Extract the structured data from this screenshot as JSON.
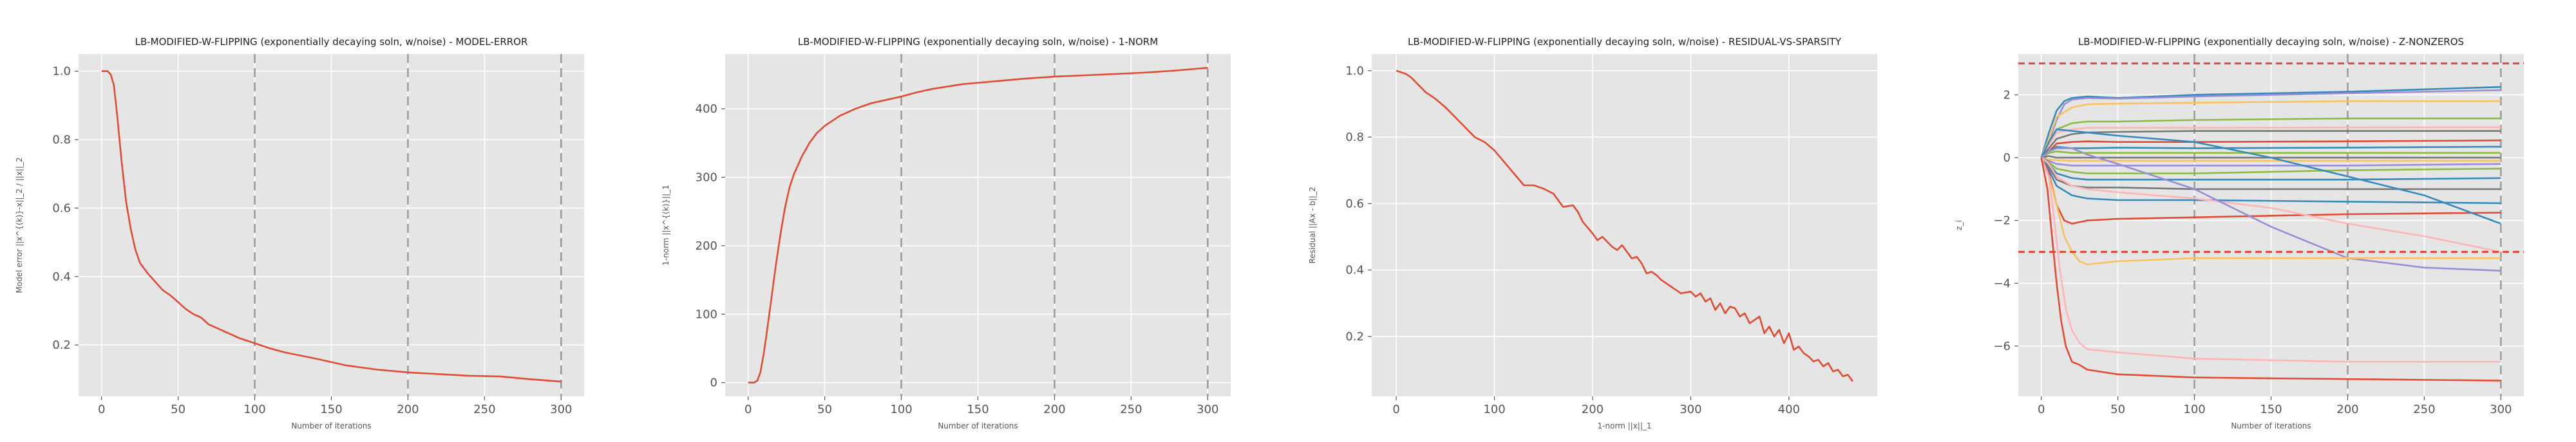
{
  "chart_data": [
    {
      "type": "line",
      "title": "LB-MODIFIED-W-FLIPPING (exponentially decaying soln, w/noise) - MODEL-ERROR",
      "xlabel": "Number of iterations",
      "ylabel": "Model error ||x^{(k)}-x||_2 / ||x||_2",
      "xlim": [
        -15,
        315
      ],
      "ylim": [
        0.05,
        1.05
      ],
      "xticks": [
        0,
        50,
        100,
        150,
        200,
        250,
        300
      ],
      "yticks": [
        0.2,
        0.4,
        0.6,
        0.8,
        1.0
      ],
      "ytick_labels": [
        "0.2",
        "0.4",
        "0.6",
        "0.8",
        "1.0"
      ],
      "vlines": [
        100,
        200,
        300
      ],
      "hlines": [],
      "grid": true,
      "series": [
        {
          "color": "#e24a33",
          "x": [
            0,
            2,
            4,
            6,
            8,
            10,
            13,
            16,
            19,
            22,
            25,
            30,
            35,
            40,
            45,
            50,
            55,
            60,
            65,
            70,
            80,
            90,
            100,
            110,
            120,
            140,
            160,
            180,
            200,
            220,
            240,
            260,
            280,
            300
          ],
          "y": [
            1.0,
            1.0,
            1.0,
            0.99,
            0.96,
            0.88,
            0.74,
            0.62,
            0.54,
            0.48,
            0.44,
            0.41,
            0.385,
            0.36,
            0.345,
            0.325,
            0.305,
            0.29,
            0.28,
            0.26,
            0.24,
            0.22,
            0.205,
            0.19,
            0.178,
            0.16,
            0.14,
            0.128,
            0.12,
            0.115,
            0.11,
            0.108,
            0.1,
            0.093
          ]
        }
      ]
    },
    {
      "type": "line",
      "title": "LB-MODIFIED-W-FLIPPING (exponentially decaying soln, w/noise) - 1-NORM",
      "xlabel": "Number of iterations",
      "ylabel": "1-norm ||x^{(k)}||_1",
      "xlim": [
        -15,
        315
      ],
      "ylim": [
        -20,
        480
      ],
      "xticks": [
        0,
        50,
        100,
        150,
        200,
        250,
        300
      ],
      "yticks": [
        0,
        100,
        200,
        300,
        400
      ],
      "ytick_labels": [
        "0",
        "100",
        "200",
        "300",
        "400"
      ],
      "vlines": [
        100,
        200,
        300
      ],
      "hlines": [],
      "grid": true,
      "series": [
        {
          "color": "#e24a33",
          "x": [
            0,
            2,
            4,
            6,
            8,
            10,
            12,
            15,
            18,
            21,
            24,
            27,
            30,
            35,
            40,
            45,
            50,
            60,
            70,
            80,
            90,
            100,
            110,
            120,
            140,
            160,
            180,
            200,
            220,
            240,
            260,
            280,
            300
          ],
          "y": [
            0,
            0,
            0,
            3,
            15,
            40,
            70,
            120,
            170,
            215,
            255,
            285,
            305,
            330,
            350,
            365,
            375,
            390,
            400,
            408,
            413,
            418,
            424,
            429,
            436,
            440,
            444,
            447,
            449,
            451,
            453,
            456,
            460
          ]
        }
      ]
    },
    {
      "type": "line",
      "title": "LB-MODIFIED-W-FLIPPING (exponentially decaying soln, w/noise) - RESIDUAL-VS-SPARSITY",
      "xlabel": "1-norm ||x||_1",
      "ylabel": "Residual ||Ax - b||_2",
      "xlim": [
        -25,
        490
      ],
      "ylim": [
        0.02,
        1.05
      ],
      "xticks": [
        0,
        100,
        200,
        300,
        400
      ],
      "yticks": [
        0.2,
        0.4,
        0.6,
        0.8,
        1.0
      ],
      "ytick_labels": [
        "0.2",
        "0.4",
        "0.6",
        "0.8",
        "1.0"
      ],
      "vlines": [],
      "hlines": [],
      "grid": true,
      "series": [
        {
          "color": "#e24a33",
          "x": [
            0,
            5,
            10,
            15,
            20,
            25,
            30,
            35,
            40,
            50,
            60,
            70,
            80,
            90,
            100,
            110,
            120,
            130,
            140,
            150,
            160,
            170,
            180,
            185,
            190,
            200,
            205,
            210,
            220,
            225,
            230,
            240,
            245,
            250,
            255,
            260,
            265,
            270,
            280,
            290,
            300,
            305,
            310,
            315,
            320,
            325,
            330,
            335,
            340,
            345,
            350,
            355,
            360,
            365,
            370,
            375,
            380,
            385,
            390,
            395,
            400,
            405,
            410,
            415,
            420,
            425,
            430,
            435,
            440,
            445,
            450,
            455,
            460,
            465
          ],
          "y": [
            1.0,
            0.995,
            0.99,
            0.98,
            0.965,
            0.95,
            0.935,
            0.925,
            0.915,
            0.89,
            0.86,
            0.83,
            0.8,
            0.785,
            0.76,
            0.725,
            0.69,
            0.655,
            0.655,
            0.645,
            0.63,
            0.59,
            0.595,
            0.575,
            0.545,
            0.51,
            0.49,
            0.5,
            0.47,
            0.46,
            0.475,
            0.435,
            0.44,
            0.42,
            0.39,
            0.395,
            0.385,
            0.37,
            0.35,
            0.33,
            0.335,
            0.32,
            0.33,
            0.305,
            0.315,
            0.28,
            0.3,
            0.27,
            0.29,
            0.285,
            0.26,
            0.27,
            0.24,
            0.25,
            0.26,
            0.21,
            0.23,
            0.2,
            0.22,
            0.18,
            0.21,
            0.16,
            0.17,
            0.15,
            0.14,
            0.125,
            0.13,
            0.11,
            0.12,
            0.095,
            0.1,
            0.08,
            0.085,
            0.065
          ]
        }
      ]
    },
    {
      "type": "line",
      "title": "LB-MODIFIED-W-FLIPPING (exponentially decaying soln, w/noise) - Z-NONZEROS",
      "xlabel": "Number of iterations",
      "ylabel": "z_i",
      "xlim": [
        -15,
        315
      ],
      "ylim": [
        -7.6,
        3.3
      ],
      "xticks": [
        0,
        50,
        100,
        150,
        200,
        250,
        300
      ],
      "yticks": [
        -6,
        -4,
        -2,
        0,
        2
      ],
      "ytick_labels": [
        "−6",
        "−4",
        "−2",
        "0",
        "2"
      ],
      "vlines": [
        100,
        200,
        300
      ],
      "hlines": [
        3,
        -3
      ],
      "grid": true,
      "series": [
        {
          "color": "#348abd",
          "x": [
            0,
            5,
            10,
            15,
            20,
            30,
            50,
            100,
            200,
            300
          ],
          "y": [
            0,
            0.8,
            1.5,
            1.8,
            1.9,
            1.95,
            1.9,
            2.0,
            2.1,
            2.25
          ]
        },
        {
          "color": "#988ed5",
          "x": [
            0,
            5,
            10,
            15,
            20,
            30,
            50,
            100,
            200,
            300
          ],
          "y": [
            0,
            0.5,
            1.2,
            1.7,
            1.85,
            1.9,
            1.88,
            1.95,
            2.05,
            2.15
          ]
        },
        {
          "color": "#fbc15e",
          "x": [
            0,
            5,
            10,
            20,
            30,
            50,
            100,
            200,
            300
          ],
          "y": [
            0,
            0.6,
            1.3,
            1.6,
            1.7,
            1.72,
            1.75,
            1.8,
            1.8
          ]
        },
        {
          "color": "#8eba42",
          "x": [
            0,
            5,
            10,
            20,
            30,
            50,
            100,
            200,
            300
          ],
          "y": [
            0,
            0.4,
            0.9,
            1.1,
            1.15,
            1.15,
            1.2,
            1.25,
            1.25
          ]
        },
        {
          "color": "#ffb5b8",
          "x": [
            0,
            5,
            10,
            20,
            30,
            50,
            100,
            200,
            300
          ],
          "y": [
            0,
            0.4,
            0.8,
            0.9,
            0.95,
            0.95,
            0.95,
            0.96,
            0.97
          ]
        },
        {
          "color": "#777777",
          "x": [
            0,
            5,
            10,
            20,
            30,
            50,
            100,
            200,
            300
          ],
          "y": [
            0,
            0.3,
            0.6,
            0.75,
            0.8,
            0.82,
            0.85,
            0.85,
            0.85
          ]
        },
        {
          "color": "#e24a33",
          "x": [
            0,
            5,
            10,
            20,
            30,
            50,
            100,
            200,
            300
          ],
          "y": [
            0,
            0.2,
            0.45,
            0.5,
            0.52,
            0.5,
            0.5,
            0.52,
            0.55
          ]
        },
        {
          "color": "#348abd",
          "x": [
            0,
            5,
            10,
            20,
            30,
            50,
            100,
            200,
            300
          ],
          "y": [
            0,
            0.2,
            0.35,
            0.3,
            0.3,
            0.32,
            0.3,
            0.32,
            0.35
          ]
        },
        {
          "color": "#8eba42",
          "x": [
            0,
            5,
            10,
            20,
            30,
            50,
            100,
            200,
            300
          ],
          "y": [
            0,
            0.15,
            0.2,
            0.15,
            0.15,
            0.15,
            0.15,
            0.15,
            0.15
          ]
        },
        {
          "color": "#777777",
          "x": [
            0,
            5,
            10,
            20,
            30,
            50,
            100,
            200,
            300
          ],
          "y": [
            0,
            0.05,
            0.0,
            0.0,
            0.0,
            0.0,
            0.0,
            0.0,
            0.0
          ]
        },
        {
          "color": "#fbc15e",
          "x": [
            0,
            5,
            10,
            20,
            30,
            50,
            100,
            200,
            300
          ],
          "y": [
            0,
            -0.05,
            -0.08,
            -0.1,
            -0.1,
            -0.1,
            -0.1,
            -0.1,
            -0.1
          ]
        },
        {
          "color": "#988ed5",
          "x": [
            0,
            5,
            10,
            20,
            30,
            50,
            100,
            200,
            300
          ],
          "y": [
            0,
            -0.1,
            -0.2,
            -0.25,
            -0.25,
            -0.25,
            -0.25,
            -0.25,
            -0.2
          ]
        },
        {
          "color": "#8eba42",
          "x": [
            0,
            5,
            10,
            20,
            30,
            50,
            100,
            200,
            300
          ],
          "y": [
            0,
            -0.15,
            -0.35,
            -0.45,
            -0.5,
            -0.5,
            -0.5,
            -0.4,
            -0.35
          ]
        },
        {
          "color": "#348abd",
          "x": [
            0,
            5,
            10,
            20,
            30,
            50,
            100,
            200,
            300
          ],
          "y": [
            0,
            -0.2,
            -0.5,
            -0.65,
            -0.7,
            -0.7,
            -0.7,
            -0.7,
            -0.65
          ]
        },
        {
          "color": "#777777",
          "x": [
            0,
            5,
            10,
            20,
            30,
            50,
            100,
            200,
            300
          ],
          "y": [
            0,
            -0.3,
            -0.7,
            -0.9,
            -0.95,
            -0.95,
            -1.0,
            -1.0,
            -1.0
          ]
        },
        {
          "color": "#348abd",
          "x": [
            0,
            5,
            10,
            20,
            30,
            50,
            100,
            200,
            300
          ],
          "y": [
            0,
            -0.4,
            -0.9,
            -1.2,
            -1.3,
            -1.35,
            -1.35,
            -1.4,
            -1.45
          ]
        },
        {
          "color": "#e24a33",
          "x": [
            0,
            5,
            10,
            15,
            20,
            30,
            50,
            100,
            200,
            300
          ],
          "y": [
            0,
            -0.5,
            -1.5,
            -2.0,
            -2.1,
            -2.0,
            -1.95,
            -1.9,
            -1.8,
            -1.75
          ]
        },
        {
          "color": "#348abd",
          "x": [
            0,
            5,
            10,
            20,
            30,
            50,
            100,
            150,
            200,
            250,
            300
          ],
          "y": [
            0,
            0.5,
            0.9,
            0.85,
            0.8,
            0.7,
            0.5,
            0.0,
            -0.6,
            -1.2,
            -2.1
          ]
        },
        {
          "color": "#ffb5b8",
          "x": [
            0,
            5,
            10,
            20,
            30,
            50,
            100,
            150,
            200,
            250,
            300
          ],
          "y": [
            0,
            -0.2,
            -0.6,
            -0.9,
            -1.0,
            -1.1,
            -1.3,
            -1.6,
            -2.1,
            -2.5,
            -3.0
          ]
        },
        {
          "color": "#988ed5",
          "x": [
            0,
            5,
            10,
            20,
            30,
            50,
            100,
            150,
            200,
            250,
            300
          ],
          "y": [
            0,
            0.2,
            0.3,
            0.3,
            0.1,
            -0.2,
            -1.0,
            -2.2,
            -3.2,
            -3.5,
            -3.6
          ]
        },
        {
          "color": "#fbc15e",
          "x": [
            0,
            5,
            10,
            15,
            20,
            25,
            30,
            50,
            100,
            200,
            300
          ],
          "y": [
            0,
            -0.6,
            -1.5,
            -2.5,
            -3.0,
            -3.3,
            -3.4,
            -3.3,
            -3.2,
            -3.2,
            -3.2
          ]
        },
        {
          "color": "#ffb5b8",
          "x": [
            0,
            5,
            8,
            12,
            16,
            20,
            25,
            30,
            50,
            100,
            200,
            300
          ],
          "y": [
            0,
            -0.6,
            -1.8,
            -3.5,
            -4.8,
            -5.5,
            -5.9,
            -6.1,
            -6.2,
            -6.4,
            -6.5,
            -6.5
          ]
        },
        {
          "color": "#e24a33",
          "x": [
            0,
            4,
            7,
            10,
            13,
            16,
            20,
            25,
            30,
            50,
            100,
            200,
            300
          ],
          "y": [
            0,
            -1.0,
            -2.5,
            -4.0,
            -5.2,
            -6.0,
            -6.5,
            -6.6,
            -6.75,
            -6.9,
            -7.0,
            -7.05,
            -7.1
          ]
        }
      ]
    }
  ]
}
